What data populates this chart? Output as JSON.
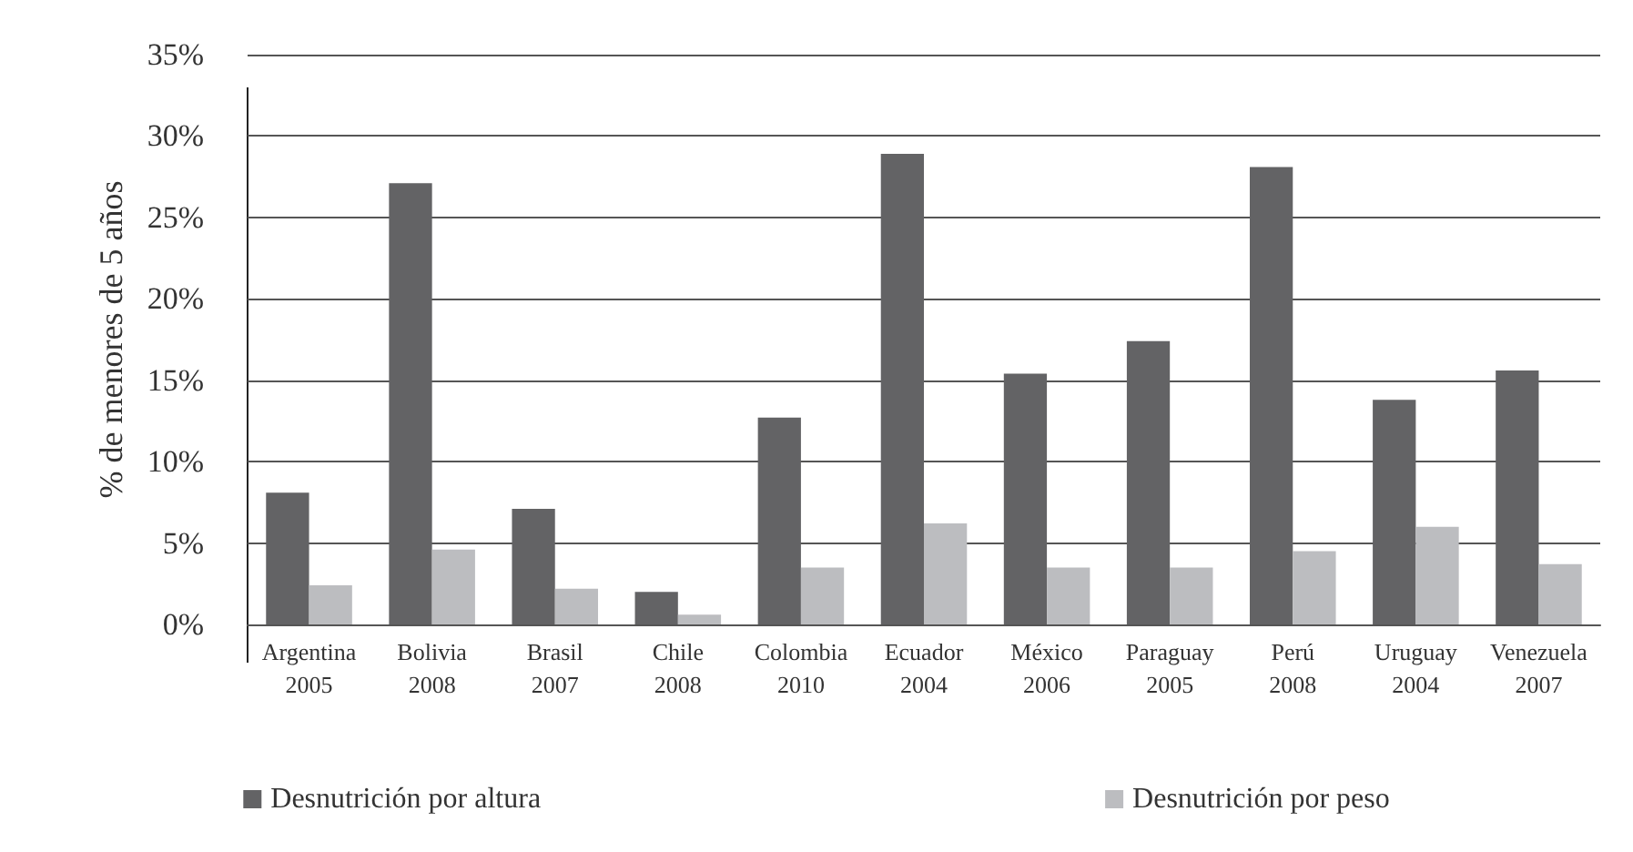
{
  "chart_data": {
    "type": "bar",
    "ylabel": "% de menores de 5 años",
    "categories": [
      "Argentina\n2005",
      "Bolivia\n2008",
      "Brasil\n2007",
      "Chile\n2008",
      "Colombia\n2010",
      "Ecuador\n2004",
      "México\n2006",
      "Paraguay\n2005",
      "Perú\n2008",
      "Uruguay\n2004",
      "Venezuela\n2007"
    ],
    "series": [
      {
        "name": "Desnutrición por altura",
        "color": "#636365",
        "values": [
          8.1,
          27.1,
          7.1,
          2.0,
          12.7,
          28.9,
          15.4,
          17.4,
          28.1,
          13.8,
          15.6
        ]
      },
      {
        "name": "Desnutrición por peso",
        "color": "#bcbdc0",
        "values": [
          2.4,
          4.6,
          2.2,
          0.6,
          3.5,
          6.2,
          3.5,
          3.5,
          4.5,
          6.0,
          3.7
        ]
      }
    ],
    "ylim": [
      0,
      35
    ],
    "yticks": [
      {
        "value": 0,
        "label": "0%"
      },
      {
        "value": 5,
        "label": "5%"
      },
      {
        "value": 10,
        "label": "10%"
      },
      {
        "value": 15,
        "label": "15%"
      },
      {
        "value": 20,
        "label": "20%"
      },
      {
        "value": 25,
        "label": "25%"
      },
      {
        "value": 30,
        "label": "30%"
      },
      {
        "value": 35,
        "label": "35%"
      }
    ],
    "grid": "y",
    "legend": "bottom"
  }
}
